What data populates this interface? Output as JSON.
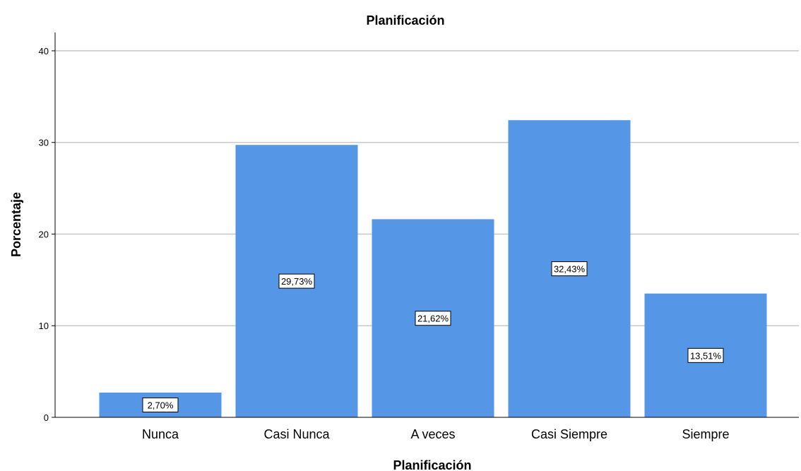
{
  "chart_data": {
    "type": "bar",
    "title": "Planificación",
    "xlabel": "Planificación",
    "ylabel": "Porcentaje",
    "categories": [
      "Nunca",
      "Casi Nunca",
      "A veces",
      "Casi Siempre",
      "Siempre"
    ],
    "values": [
      2.7,
      29.73,
      21.62,
      32.43,
      13.51
    ],
    "data_labels": [
      "2,70%",
      "29,73%",
      "21,62%",
      "32,43%",
      "13,51%"
    ],
    "ylim": [
      0,
      42
    ],
    "yticks": [
      0,
      10,
      20,
      30,
      40
    ],
    "ytick_labels": [
      "0",
      "10",
      "20",
      "30",
      "40"
    ],
    "grid": true,
    "bar_color": "#5596e6",
    "grid_color": "#bfbfbf"
  }
}
